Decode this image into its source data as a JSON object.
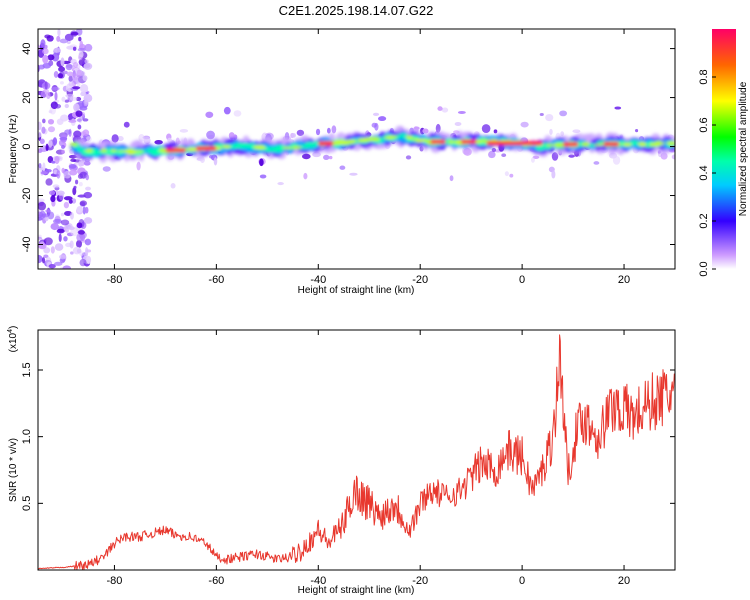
{
  "title": "C2E1.2025.198.14.07.G22",
  "chart_data": [
    {
      "type": "heatmap",
      "xlabel": "Height of straight line (km)",
      "ylabel": "Frequency (Hz)",
      "xlim": [
        -95,
        30
      ],
      "ylim": [
        -50,
        48
      ],
      "xticks": [
        -80,
        -60,
        -40,
        -20,
        0,
        20
      ],
      "yticks": [
        -40,
        -20,
        0,
        20,
        40
      ],
      "ridge": [
        [
          -93,
          0
        ],
        [
          -90,
          3
        ],
        [
          -86,
          -2
        ],
        [
          -80,
          -2
        ],
        [
          -72,
          -2
        ],
        [
          -64,
          -1
        ],
        [
          -56,
          0
        ],
        [
          -48,
          -1
        ],
        [
          -44,
          0
        ],
        [
          -40,
          1
        ],
        [
          -34,
          2
        ],
        [
          -28,
          3
        ],
        [
          -24,
          4
        ],
        [
          -18,
          2
        ],
        [
          -10,
          2
        ],
        [
          -4,
          2
        ],
        [
          0,
          1
        ],
        [
          4,
          0
        ],
        [
          10,
          1
        ],
        [
          18,
          1
        ],
        [
          24,
          1
        ],
        [
          30,
          1
        ]
      ],
      "colorbar": {
        "label": "Normalized spectral amplitude",
        "range": [
          0,
          1
        ],
        "ticks": [
          "0.0",
          "0.2",
          "0.4",
          "0.6",
          "0.8"
        ]
      }
    },
    {
      "type": "line",
      "xlabel": "Height of straight line (km)",
      "ylabel": "SNR (10 * v/v)",
      "scale_note": "(x10",
      "scale_exp": "4",
      "scale_close": ")",
      "xlim": [
        -95,
        30
      ],
      "ylim": [
        0,
        1.8
      ],
      "xticks": [
        -80,
        -60,
        -40,
        -20,
        0,
        20
      ],
      "yticks": [
        "0.5",
        "1.0",
        "1.5"
      ],
      "color": "#e8382e",
      "x": [
        -95,
        -90,
        -85,
        -82,
        -80,
        -78,
        -75,
        -72,
        -70,
        -68,
        -65,
        -62,
        -60,
        -58,
        -55,
        -52,
        -50,
        -48,
        -45,
        -42,
        -40,
        -38,
        -35,
        -33,
        -30,
        -28,
        -25,
        -22,
        -20,
        -18,
        -15,
        -12,
        -10,
        -8,
        -5,
        -3,
        0,
        2,
        4,
        6,
        7.5,
        9,
        10,
        12,
        15,
        18,
        20,
        22,
        25,
        28,
        30
      ],
      "y": [
        0.01,
        0.02,
        0.04,
        0.1,
        0.2,
        0.25,
        0.25,
        0.28,
        0.3,
        0.26,
        0.25,
        0.2,
        0.1,
        0.08,
        0.1,
        0.12,
        0.1,
        0.08,
        0.1,
        0.2,
        0.3,
        0.2,
        0.35,
        0.6,
        0.5,
        0.4,
        0.5,
        0.3,
        0.5,
        0.6,
        0.55,
        0.6,
        0.7,
        0.8,
        0.75,
        0.9,
        0.85,
        0.6,
        0.75,
        1.0,
        1.6,
        0.7,
        0.95,
        1.15,
        1.0,
        1.25,
        1.2,
        1.15,
        1.25,
        1.3,
        1.35
      ]
    }
  ]
}
